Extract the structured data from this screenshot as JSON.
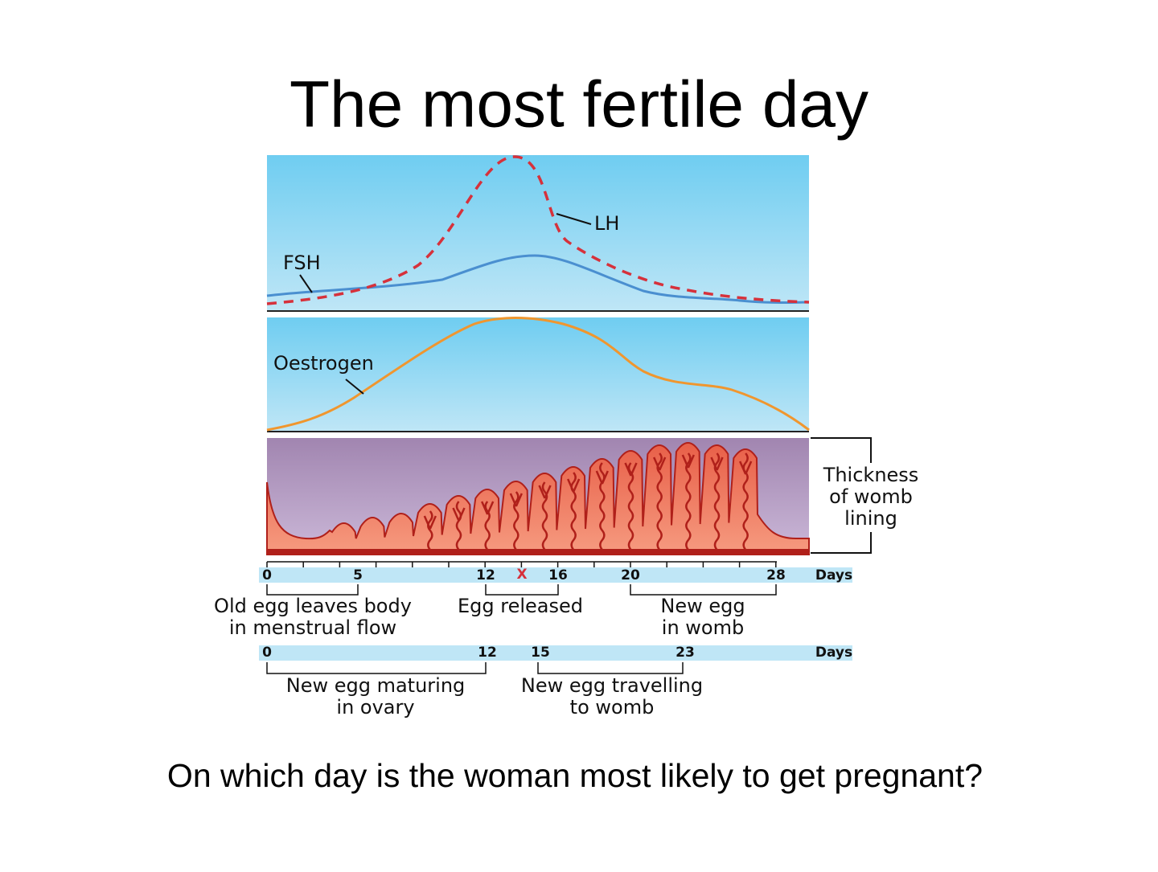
{
  "header": {
    "title": "The most fertile day"
  },
  "diagram": {
    "hormones": {
      "fsh": "FSH",
      "lh": "LH",
      "oestrogen": "Oestrogen"
    },
    "lining": [
      "Thickness",
      "of womb",
      "lining"
    ],
    "cycle_axis": {
      "ticks": [
        "0",
        "5",
        "12",
        "X",
        "16",
        "20",
        "28"
      ],
      "unit": "Days"
    },
    "cycle_periods": [
      [
        "Old egg leaves body",
        "in menstrual flow"
      ],
      [
        "Egg released"
      ],
      [
        "New egg",
        "in womb"
      ]
    ],
    "egg_axis": {
      "ticks": [
        "0",
        "12",
        "15",
        "23"
      ],
      "unit": "Days"
    },
    "egg_periods": [
      [
        "New egg maturing",
        "in ovary"
      ],
      [
        "New egg travelling",
        "to womb"
      ]
    ]
  },
  "question": "On which day is the woman most likely to get pregnant?"
}
